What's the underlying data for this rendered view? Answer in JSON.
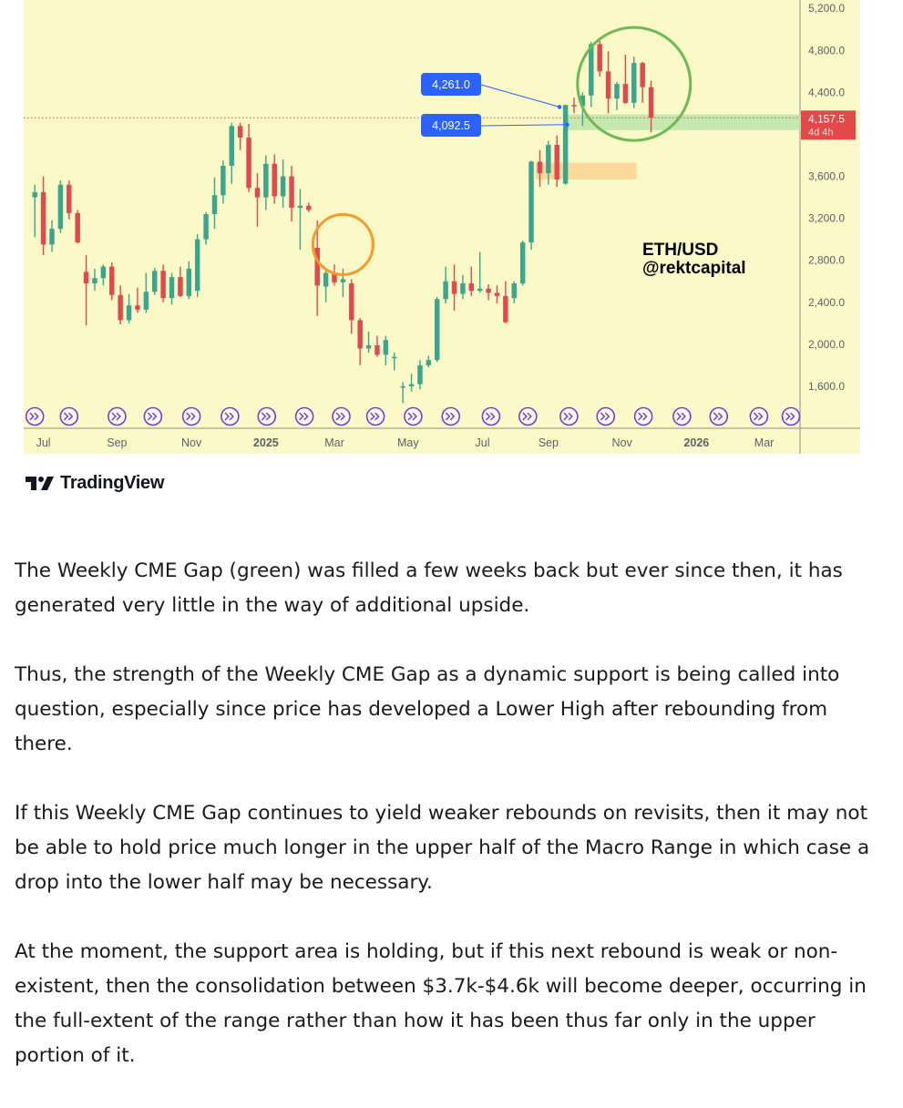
{
  "chart_data": {
    "type": "candlestick",
    "symbol_label": "ETH/USD",
    "author_label": "@rektcapital",
    "y_axis": {
      "ticks": [
        1600,
        2000,
        2400,
        2800,
        3200,
        3600,
        4000,
        4400,
        4800,
        5200
      ],
      "tick_labels": [
        "1,600.0",
        "2,000.0",
        "2,400.0",
        "2,800.0",
        "3,200.0",
        "3,600.0",
        "4,000.0",
        "4,400.0",
        "4,800.0",
        "5,200.0"
      ],
      "range": [
        1200,
        5280
      ]
    },
    "x_axis": {
      "tick_labels": [
        "Jul",
        "Sep",
        "Nov",
        "2025",
        "Mar",
        "May",
        "Jul",
        "Sep",
        "Nov",
        "2026",
        "Mar"
      ],
      "bold_labels": [
        "2025",
        "2026"
      ],
      "tick_index": [
        1,
        9.6,
        18.3,
        27,
        35,
        43.6,
        52.3,
        60,
        68.6,
        77.3,
        85.2
      ],
      "index_range": [
        -1.3,
        89.4
      ]
    },
    "candles": [
      {
        "o": 3400,
        "h": 3520,
        "l": 3020,
        "c": 3450
      },
      {
        "o": 3450,
        "h": 3600,
        "l": 2850,
        "c": 2950
      },
      {
        "o": 2950,
        "h": 3180,
        "l": 2880,
        "c": 3100
      },
      {
        "o": 3100,
        "h": 3560,
        "l": 3060,
        "c": 3520
      },
      {
        "o": 3520,
        "h": 3560,
        "l": 3190,
        "c": 3250
      },
      {
        "o": 3250,
        "h": 3280,
        "l": 2960,
        "c": 2970
      },
      {
        "o": 2690,
        "h": 2850,
        "l": 2180,
        "c": 2580
      },
      {
        "o": 2580,
        "h": 2720,
        "l": 2510,
        "c": 2630
      },
      {
        "o": 2630,
        "h": 2760,
        "l": 2560,
        "c": 2740
      },
      {
        "o": 2740,
        "h": 2780,
        "l": 2420,
        "c": 2470
      },
      {
        "o": 2470,
        "h": 2560,
        "l": 2190,
        "c": 2230
      },
      {
        "o": 2230,
        "h": 2480,
        "l": 2200,
        "c": 2370
      },
      {
        "o": 2370,
        "h": 2540,
        "l": 2300,
        "c": 2330
      },
      {
        "o": 2330,
        "h": 2680,
        "l": 2300,
        "c": 2500
      },
      {
        "o": 2500,
        "h": 2730,
        "l": 2470,
        "c": 2700
      },
      {
        "o": 2700,
        "h": 2760,
        "l": 2400,
        "c": 2440
      },
      {
        "o": 2440,
        "h": 2680,
        "l": 2380,
        "c": 2640
      },
      {
        "o": 2640,
        "h": 2740,
        "l": 2450,
        "c": 2460
      },
      {
        "o": 2460,
        "h": 2790,
        "l": 2430,
        "c": 2720
      },
      {
        "o": 2510,
        "h": 3050,
        "l": 2450,
        "c": 3000
      },
      {
        "o": 3000,
        "h": 3260,
        "l": 2950,
        "c": 3240
      },
      {
        "o": 3240,
        "h": 3590,
        "l": 3100,
        "c": 3420
      },
      {
        "o": 3420,
        "h": 3750,
        "l": 3340,
        "c": 3700
      },
      {
        "o": 3700,
        "h": 4110,
        "l": 3530,
        "c": 4080
      },
      {
        "o": 4080,
        "h": 4110,
        "l": 3850,
        "c": 3970
      },
      {
        "o": 3970,
        "h": 4100,
        "l": 3450,
        "c": 3490
      },
      {
        "o": 3490,
        "h": 3630,
        "l": 3120,
        "c": 3400
      },
      {
        "o": 3400,
        "h": 3800,
        "l": 3280,
        "c": 3720
      },
      {
        "o": 3720,
        "h": 3810,
        "l": 3340,
        "c": 3410
      },
      {
        "o": 3410,
        "h": 3760,
        "l": 3300,
        "c": 3600
      },
      {
        "o": 3600,
        "h": 3700,
        "l": 3170,
        "c": 3300
      },
      {
        "o": 3300,
        "h": 3480,
        "l": 2900,
        "c": 3320
      },
      {
        "o": 3320,
        "h": 3350,
        "l": 3260,
        "c": 3280
      },
      {
        "o": 2920,
        "h": 3180,
        "l": 2270,
        "c": 2560
      },
      {
        "o": 2550,
        "h": 2700,
        "l": 2400,
        "c": 2680
      },
      {
        "o": 2680,
        "h": 2760,
        "l": 2560,
        "c": 2590
      },
      {
        "o": 2590,
        "h": 2720,
        "l": 2450,
        "c": 2620
      },
      {
        "o": 2580,
        "h": 2620,
        "l": 2100,
        "c": 2230
      },
      {
        "o": 2230,
        "h": 2250,
        "l": 1800,
        "c": 1960
      },
      {
        "o": 1960,
        "h": 2120,
        "l": 1920,
        "c": 1990
      },
      {
        "o": 1990,
        "h": 2080,
        "l": 1880,
        "c": 1900
      },
      {
        "o": 1900,
        "h": 2080,
        "l": 1800,
        "c": 2040
      },
      {
        "o": 1870,
        "h": 1920,
        "l": 1750,
        "c": 1880
      },
      {
        "o": 1590,
        "h": 1640,
        "l": 1440,
        "c": 1600
      },
      {
        "o": 1600,
        "h": 1720,
        "l": 1550,
        "c": 1620
      },
      {
        "o": 1620,
        "h": 1850,
        "l": 1570,
        "c": 1800
      },
      {
        "o": 1800,
        "h": 1890,
        "l": 1780,
        "c": 1850
      },
      {
        "o": 1850,
        "h": 2450,
        "l": 1830,
        "c": 2430
      },
      {
        "o": 2430,
        "h": 2740,
        "l": 2390,
        "c": 2600
      },
      {
        "o": 2600,
        "h": 2760,
        "l": 2320,
        "c": 2480
      },
      {
        "o": 2480,
        "h": 2660,
        "l": 2430,
        "c": 2580
      },
      {
        "o": 2580,
        "h": 2740,
        "l": 2460,
        "c": 2510
      },
      {
        "o": 2510,
        "h": 2880,
        "l": 2490,
        "c": 2530
      },
      {
        "o": 2530,
        "h": 2570,
        "l": 2420,
        "c": 2490
      },
      {
        "o": 2490,
        "h": 2560,
        "l": 2390,
        "c": 2460
      },
      {
        "o": 2460,
        "h": 2600,
        "l": 2200,
        "c": 2210
      },
      {
        "o": 2440,
        "h": 2600,
        "l": 2390,
        "c": 2580
      },
      {
        "o": 2580,
        "h": 2990,
        "l": 2560,
        "c": 2970
      },
      {
        "o": 2970,
        "h": 3750,
        "l": 2900,
        "c": 3740
      },
      {
        "o": 3740,
        "h": 3850,
        "l": 3500,
        "c": 3630
      },
      {
        "o": 3630,
        "h": 3940,
        "l": 3520,
        "c": 3900
      },
      {
        "o": 3900,
        "h": 3990,
        "l": 3500,
        "c": 3570
      },
      {
        "o": 3530,
        "h": 4280,
        "l": 3520,
        "c": 4280
      },
      {
        "o": 4280,
        "h": 4350,
        "l": 4200,
        "c": 4270
      },
      {
        "o": 4270,
        "h": 4400,
        "l": 4080,
        "c": 4370
      },
      {
        "o": 4370,
        "h": 4880,
        "l": 4260,
        "c": 4860
      },
      {
        "o": 4860,
        "h": 4890,
        "l": 4550,
        "c": 4600
      },
      {
        "o": 4600,
        "h": 4790,
        "l": 4200,
        "c": 4340
      },
      {
        "o": 4340,
        "h": 4500,
        "l": 4230,
        "c": 4480
      },
      {
        "o": 4480,
        "h": 4760,
        "l": 4290,
        "c": 4300
      },
      {
        "o": 4300,
        "h": 4740,
        "l": 4250,
        "c": 4680
      },
      {
        "o": 4680,
        "h": 4690,
        "l": 4300,
        "c": 4450
      },
      {
        "o": 4450,
        "h": 4510,
        "l": 4020,
        "c": 4157.5
      }
    ],
    "event_marker_index": [
      0,
      4,
      9.6,
      13.8,
      18.3,
      22.8,
      27.1,
      31.5,
      35.8,
      39.8,
      44.2,
      48.6,
      53.3,
      57.6,
      62.4,
      66.7,
      71.1,
      75.6,
      79.9,
      84.6,
      89
    ],
    "price_lines": {
      "current": {
        "value": 4157.5,
        "label": "4,157.5",
        "countdown": "4d 4h"
      },
      "callouts": [
        {
          "value": 4261.0,
          "label": "4,261.0"
        },
        {
          "value": 4092.5,
          "label": "4,092.5"
        }
      ]
    },
    "zones": [
      {
        "name": "green CME gap",
        "from_index": 62,
        "to_index": 89.5,
        "low": 4040,
        "high": 4190
      },
      {
        "name": "orange zone",
        "from_index": 58.5,
        "to_index": 70.3,
        "low": 3570,
        "high": 3730
      }
    ],
    "circles": [
      {
        "name": "orange circle",
        "center_index": 36,
        "center_value": 2950
      },
      {
        "name": "green circle",
        "center_index": 70,
        "center_value": 4480
      }
    ],
    "colors": {
      "background": "#fbf9c7",
      "up": "#3ba58f",
      "down": "#df4a4f",
      "badge": "#2962ff",
      "price_tag": "#e24a4a",
      "green_zone": "#b9e4a7",
      "orange_zone": "#fbd493",
      "circle_orange": "#f39b2b",
      "circle_green": "#6cb956",
      "marker": "#7a3ad1"
    }
  },
  "branding": {
    "name": "TradingView",
    "logo_icon": "tradingview-logo-icon"
  },
  "article": {
    "paragraphs": [
      "The Weekly CME Gap (green) was filled a few weeks back but ever since then, it has generated very little in the way of additional upside.",
      "Thus, the strength of the Weekly CME Gap as a dynamic support is being called into question, especially since price has developed a Lower High after rebounding from there.",
      "If this Weekly CME Gap continues to yield weaker rebounds on revisits, then it may not be able to hold price much longer in the upper half of the Macro Range in which case a drop into the lower half may be necessary.",
      "At the moment, the support area is holding, but if this next rebound is weak or non-existent, then the consolidation between $3.7k-$4.6k will become deeper, occurring in the full-extent of the range rather than how it has been thus far only in the upper portion of it."
    ]
  }
}
